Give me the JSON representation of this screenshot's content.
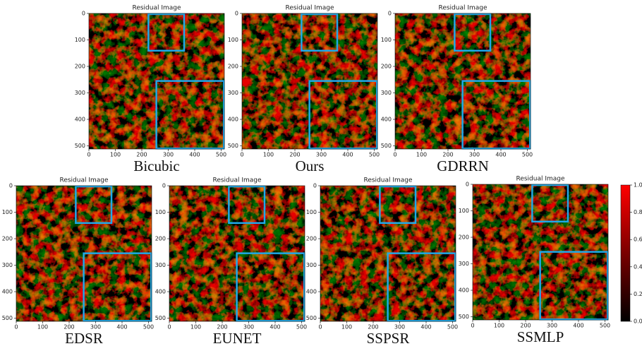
{
  "panels": [
    {
      "title": "Residual Image",
      "caption": "Bicubic"
    },
    {
      "title": "Residual Image",
      "caption": "Ours"
    },
    {
      "title": "Residual Image",
      "caption": "GDRRN"
    },
    {
      "title": "Residual Image",
      "caption": "EDSR"
    },
    {
      "title": "Residual Image",
      "caption": "EUNET"
    },
    {
      "title": "Residual Image",
      "caption": "SSPSR"
    },
    {
      "title": "Residual Image",
      "caption": "SSMLP"
    }
  ],
  "axis": {
    "xticks": [
      0,
      100,
      200,
      300,
      400,
      500
    ],
    "yticks": [
      0,
      100,
      200,
      300,
      400,
      500
    ]
  },
  "colorbar": {
    "ticks": [
      {
        "value": 0,
        "label": "0.0"
      },
      {
        "value": 0.2,
        "label": "0.2"
      },
      {
        "value": 0.4,
        "label": "0.4"
      },
      {
        "value": 0.6,
        "label": "0.6"
      },
      {
        "value": 0.8,
        "label": "0.8"
      },
      {
        "value": 1,
        "label": "1.0"
      }
    ]
  }
}
